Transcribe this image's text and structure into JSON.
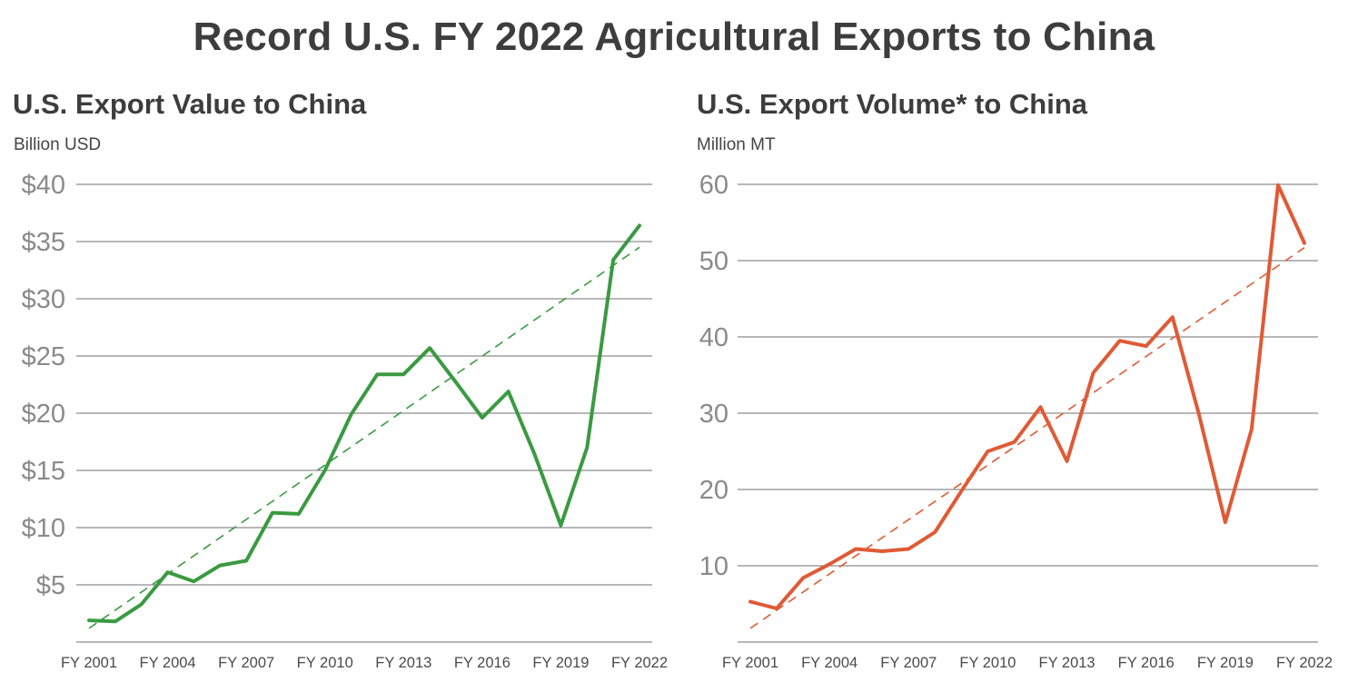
{
  "title": "Record U.S. FY 2022 Agricultural Exports to China",
  "chart_data": [
    {
      "type": "line",
      "title": "U.S. Export Value to China",
      "unit_label": "Billion USD",
      "color": "#3a9a41",
      "trend_color": "#3a9a41",
      "x": [
        "FY 2001",
        "FY 2002",
        "FY 2003",
        "FY 2004",
        "FY 2005",
        "FY 2006",
        "FY 2007",
        "FY 2008",
        "FY 2009",
        "FY 2010",
        "FY 2011",
        "FY 2012",
        "FY 2013",
        "FY 2014",
        "FY 2015",
        "FY 2016",
        "FY 2017",
        "FY 2018",
        "FY 2019",
        "FY 2020",
        "FY 2021",
        "FY 2022"
      ],
      "xtick_labels": [
        "FY 2001",
        "FY 2004",
        "FY 2007",
        "FY 2010",
        "FY 2013",
        "FY 2016",
        "FY 2019",
        "FY 2022"
      ],
      "series": [
        {
          "values": [
            1.9,
            1.8,
            3.3,
            6.1,
            5.3,
            6.7,
            7.1,
            11.3,
            11.2,
            15.0,
            19.9,
            23.4,
            23.4,
            25.7,
            22.7,
            19.6,
            21.9,
            16.4,
            10.2,
            17.0,
            33.4,
            36.4
          ]
        }
      ],
      "trendline": [
        1.2,
        34.5
      ],
      "yticks": [
        5,
        10,
        15,
        20,
        25,
        30,
        35,
        40
      ],
      "ytick_labels": [
        "$5",
        "$10",
        "$15",
        "$20",
        "$25",
        "$30",
        "$35",
        "$40"
      ],
      "ylim": [
        0,
        40
      ],
      "grid": true
    },
    {
      "type": "line",
      "title": "U.S. Export Volume* to China",
      "unit_label": "Million MT",
      "color": "#e05a35",
      "trend_color": "#e05a35",
      "x": [
        "FY 2001",
        "FY 2002",
        "FY 2003",
        "FY 2004",
        "FY 2005",
        "FY 2006",
        "FY 2007",
        "FY 2008",
        "FY 2009",
        "FY 2010",
        "FY 2011",
        "FY 2012",
        "FY 2013",
        "FY 2014",
        "FY 2015",
        "FY 2016",
        "FY 2017",
        "FY 2018",
        "FY 2019",
        "FY 2020",
        "FY 2021",
        "FY 2022"
      ],
      "xtick_labels": [
        "FY 2001",
        "FY 2004",
        "FY 2007",
        "FY 2010",
        "FY 2013",
        "FY 2016",
        "FY 2019",
        "FY 2022"
      ],
      "series": [
        {
          "values": [
            5.3,
            4.4,
            8.4,
            10.2,
            12.2,
            11.9,
            12.2,
            14.4,
            19.8,
            25.0,
            26.2,
            30.8,
            23.7,
            35.3,
            39.5,
            38.8,
            42.6,
            29.9,
            15.7,
            27.9,
            59.9,
            52.3
          ]
        }
      ],
      "trendline": [
        1.8,
        51.7
      ],
      "yticks": [
        10,
        20,
        30,
        40,
        50,
        60
      ],
      "ytick_labels": [
        "10",
        "20",
        "30",
        "40",
        "50",
        "60"
      ],
      "ylim": [
        0,
        60
      ],
      "grid": true
    }
  ]
}
